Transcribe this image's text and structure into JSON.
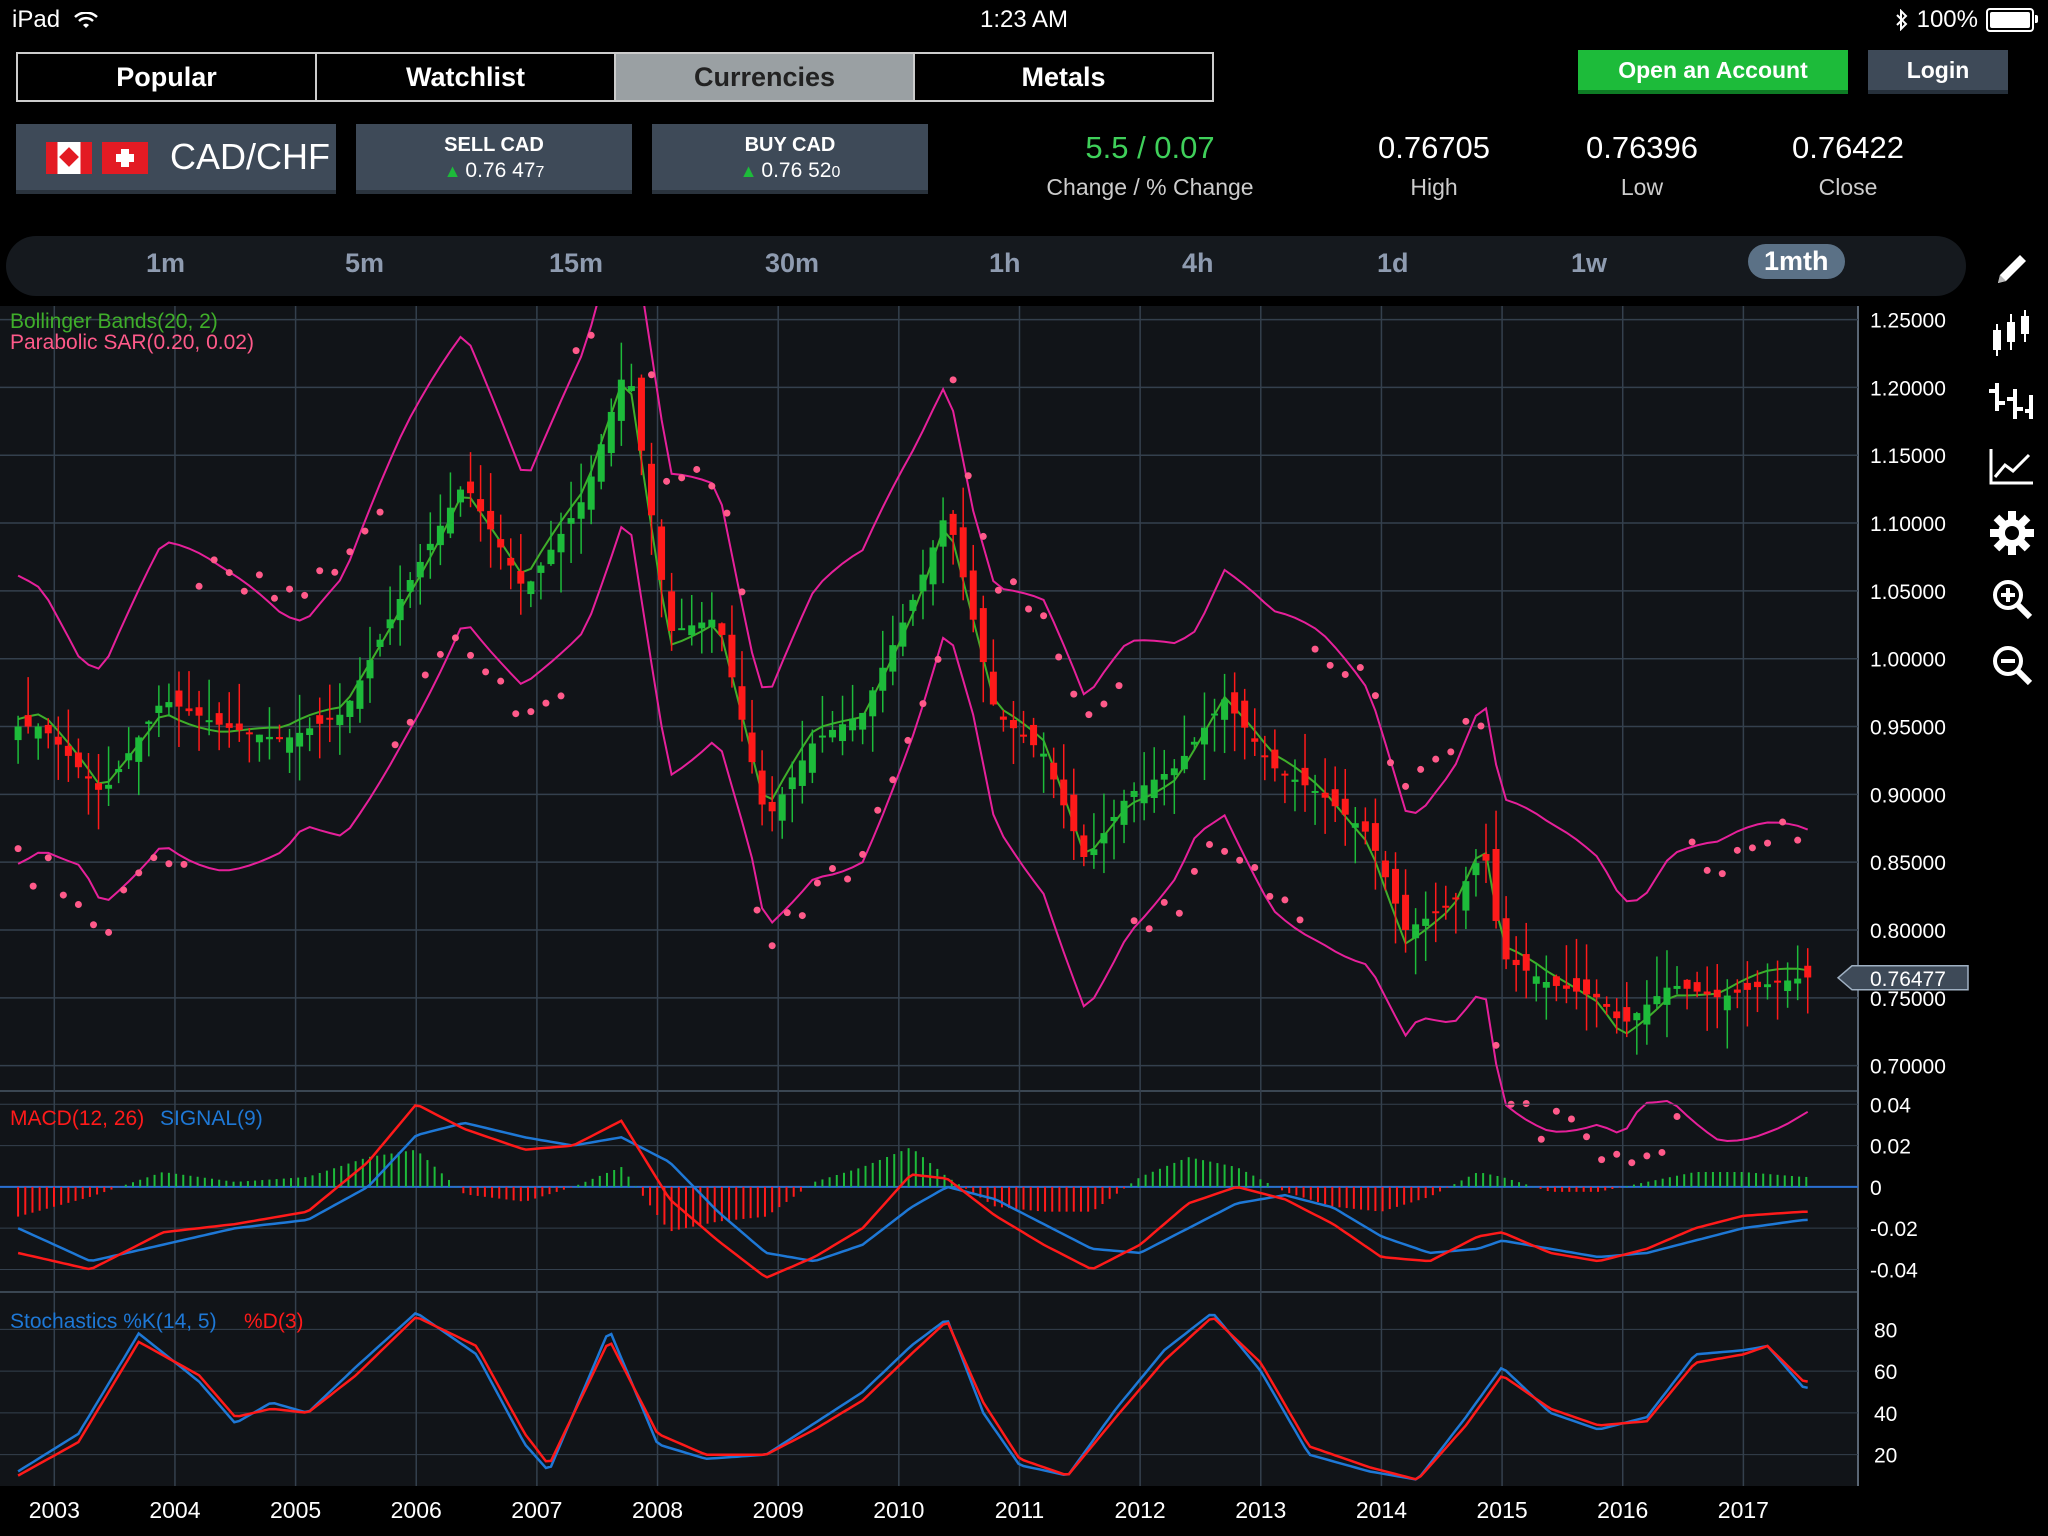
{
  "status": {
    "device": "iPad",
    "time": "1:23 AM",
    "battery": "100%"
  },
  "tabs": [
    "Popular",
    "Watchlist",
    "Currencies",
    "Metals"
  ],
  "active_tab": "Currencies",
  "account": {
    "open": "Open an Account",
    "login": "Login"
  },
  "instrument": {
    "pair": "CAD/CHF"
  },
  "sell": {
    "label": "SELL CAD",
    "price_main": "0.76 47",
    "price_tail": "7"
  },
  "buy": {
    "label": "BUY CAD",
    "price_main": "0.76 52",
    "price_tail": "0"
  },
  "stats": {
    "change_value": "5.5 / 0.07",
    "change_label": "Change / % Change",
    "high_value": "0.76705",
    "high_label": "High",
    "low_value": "0.76396",
    "low_label": "Low",
    "close_value": "0.76422",
    "close_label": "Close"
  },
  "periods": [
    "1m",
    "5m",
    "15m",
    "30m",
    "1h",
    "4h",
    "1d",
    "1w",
    "1mth"
  ],
  "active_period": "1mth",
  "tools": [
    "pencil-icon",
    "candlestick-icon",
    "ohlc-bar-icon",
    "line-chart-icon",
    "gear-icon",
    "zoom-in-icon",
    "zoom-out-icon"
  ],
  "colors": {
    "up": "#1dbb3a",
    "down": "#ff1a1a",
    "bollinger": "#3fae2a",
    "sar": "#ff5a8a",
    "band": "#e6209a",
    "macd": "#ff1a1a",
    "signal": "#1e78d6",
    "grid": "#34404d"
  },
  "chart_data": [
    {
      "type": "candlestick",
      "indicator_labels": [
        "Bollinger Bands(20, 2)",
        "Parabolic SAR(0.20, 0.02)"
      ],
      "x_ticks": [
        "2003",
        "2004",
        "2005",
        "2006",
        "2007",
        "2008",
        "2009",
        "2010",
        "2011",
        "2012",
        "2013",
        "2014",
        "2015",
        "2016",
        "2017"
      ],
      "y_ticks": [
        "1.25000",
        "1.20000",
        "1.15000",
        "1.10000",
        "1.05000",
        "1.00000",
        "0.95000",
        "0.90000",
        "0.85000",
        "0.80000",
        "0.75000",
        "0.70000"
      ],
      "ylim": [
        0.685,
        1.26
      ],
      "last_price": "0.76477",
      "series": [
        {
          "name": "close",
          "x": [
            2002.9,
            2003.4,
            2003.9,
            2004.4,
            2004.9,
            2005.4,
            2005.9,
            2006.4,
            2006.9,
            2007.4,
            2007.75,
            2008.1,
            2008.5,
            2008.9,
            2009.3,
            2009.7,
            2010.15,
            2010.4,
            2010.8,
            2011.2,
            2011.55,
            2011.9,
            2012.3,
            2012.7,
            2013.1,
            2013.5,
            2013.9,
            2014.2,
            2014.6,
            2014.85,
            2015.0,
            2015.4,
            2015.8,
            2016.0,
            2016.4,
            2016.8,
            2017.2,
            2017.5
          ],
          "y": [
            0.95,
            0.9,
            0.97,
            0.95,
            0.94,
            0.96,
            1.05,
            1.13,
            1.05,
            1.12,
            1.22,
            1.02,
            1.03,
            0.88,
            0.94,
            0.96,
            1.05,
            1.11,
            0.96,
            0.93,
            0.85,
            0.9,
            0.92,
            0.97,
            0.92,
            0.9,
            0.87,
            0.8,
            0.82,
            0.86,
            0.78,
            0.76,
            0.75,
            0.73,
            0.76,
            0.75,
            0.76,
            0.765
          ]
        }
      ]
    },
    {
      "type": "line",
      "title": "MACD(12, 26)",
      "signal_title": "SIGNAL(9)",
      "y_ticks": [
        "0.04",
        "0.02",
        "0",
        "-0.02",
        "-0.04"
      ],
      "ylim": [
        -0.048,
        0.044
      ],
      "series": [
        {
          "name": "MACD(12, 26)",
          "x": [
            2002.7,
            2003.3,
            2003.9,
            2004.5,
            2005.1,
            2005.6,
            2006.0,
            2006.4,
            2006.9,
            2007.3,
            2007.7,
            2008.1,
            2008.5,
            2008.9,
            2009.3,
            2009.7,
            2010.1,
            2010.4,
            2010.8,
            2011.2,
            2011.6,
            2012.0,
            2012.4,
            2012.8,
            2013.2,
            2013.6,
            2014.0,
            2014.4,
            2014.8,
            2015.0,
            2015.4,
            2015.8,
            2016.2,
            2016.6,
            2017.0,
            2017.5
          ],
          "y": [
            -0.032,
            -0.04,
            -0.022,
            -0.018,
            -0.012,
            0.012,
            0.04,
            0.028,
            0.018,
            0.02,
            0.032,
            -0.006,
            -0.026,
            -0.044,
            -0.034,
            -0.02,
            0.006,
            0.004,
            -0.014,
            -0.028,
            -0.04,
            -0.028,
            -0.008,
            0.0,
            -0.006,
            -0.018,
            -0.034,
            -0.036,
            -0.024,
            -0.022,
            -0.032,
            -0.036,
            -0.03,
            -0.02,
            -0.014,
            -0.012
          ]
        },
        {
          "name": "SIGNAL(9)",
          "x": [
            2002.7,
            2003.3,
            2003.9,
            2004.5,
            2005.1,
            2005.6,
            2006.0,
            2006.4,
            2006.9,
            2007.3,
            2007.7,
            2008.1,
            2008.5,
            2008.9,
            2009.3,
            2009.7,
            2010.1,
            2010.4,
            2010.8,
            2011.2,
            2011.6,
            2012.0,
            2012.4,
            2012.8,
            2013.2,
            2013.6,
            2014.0,
            2014.4,
            2014.8,
            2015.0,
            2015.4,
            2015.8,
            2016.2,
            2016.6,
            2017.0,
            2017.5
          ],
          "y": [
            -0.02,
            -0.036,
            -0.028,
            -0.02,
            -0.016,
            0.0,
            0.025,
            0.031,
            0.024,
            0.02,
            0.024,
            0.012,
            -0.012,
            -0.032,
            -0.036,
            -0.028,
            -0.01,
            0.0,
            -0.006,
            -0.018,
            -0.03,
            -0.032,
            -0.02,
            -0.008,
            -0.004,
            -0.01,
            -0.024,
            -0.032,
            -0.03,
            -0.026,
            -0.03,
            -0.034,
            -0.032,
            -0.026,
            -0.02,
            -0.016
          ]
        }
      ]
    },
    {
      "type": "line",
      "title": "Stochastics %K(14, 5)",
      "d_title": "%D(3)",
      "y_ticks": [
        "80",
        "60",
        "40",
        "20"
      ],
      "ylim": [
        5,
        95
      ],
      "series": [
        {
          "name": "%K(14, 5)",
          "x": [
            2002.7,
            2003.2,
            2003.7,
            2004.2,
            2004.5,
            2004.8,
            2005.1,
            2005.5,
            2006.0,
            2006.5,
            2006.9,
            2007.1,
            2007.6,
            2008.0,
            2008.4,
            2008.9,
            2009.3,
            2009.7,
            2010.1,
            2010.4,
            2010.7,
            2011.0,
            2011.4,
            2011.8,
            2012.2,
            2012.6,
            2013.0,
            2013.4,
            2013.9,
            2014.3,
            2014.7,
            2015.0,
            2015.4,
            2015.8,
            2016.2,
            2016.6,
            2017.0,
            2017.2,
            2017.5
          ],
          "y": [
            12,
            30,
            78,
            55,
            35,
            45,
            40,
            62,
            88,
            68,
            25,
            12,
            80,
            25,
            18,
            20,
            35,
            50,
            72,
            85,
            40,
            15,
            10,
            42,
            70,
            88,
            60,
            20,
            12,
            8,
            38,
            62,
            40,
            32,
            38,
            68,
            70,
            72,
            52
          ]
        },
        {
          "name": "%D(3)",
          "x": [
            2002.7,
            2003.2,
            2003.7,
            2004.2,
            2004.5,
            2004.8,
            2005.1,
            2005.5,
            2006.0,
            2006.5,
            2006.9,
            2007.1,
            2007.6,
            2008.0,
            2008.4,
            2008.9,
            2009.3,
            2009.7,
            2010.1,
            2010.4,
            2010.7,
            2011.0,
            2011.4,
            2011.8,
            2012.2,
            2012.6,
            2013.0,
            2013.4,
            2013.9,
            2014.3,
            2014.7,
            2015.0,
            2015.4,
            2015.8,
            2016.2,
            2016.6,
            2017.0,
            2017.2,
            2017.5
          ],
          "y": [
            10,
            26,
            74,
            58,
            38,
            42,
            40,
            58,
            86,
            72,
            30,
            15,
            75,
            30,
            20,
            20,
            32,
            46,
            68,
            84,
            45,
            18,
            10,
            38,
            65,
            86,
            64,
            24,
            14,
            8,
            34,
            58,
            42,
            34,
            36,
            64,
            68,
            72,
            55
          ]
        }
      ]
    }
  ]
}
